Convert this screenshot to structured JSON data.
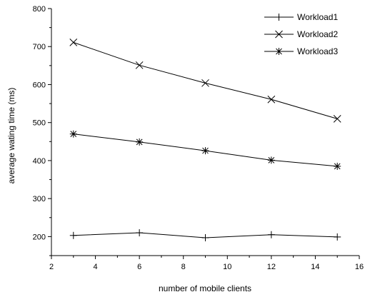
{
  "chart_data": {
    "type": "line",
    "title": "",
    "xlabel": "number of mobile clients",
    "ylabel": "average wating time (ms)",
    "xlim": [
      2,
      16
    ],
    "ylim": [
      150,
      800
    ],
    "x_ticks": [
      2,
      4,
      6,
      8,
      10,
      12,
      14,
      16
    ],
    "y_ticks": [
      200,
      300,
      400,
      500,
      600,
      700,
      800
    ],
    "grid": false,
    "legend_position": "top-right",
    "x": [
      3,
      6,
      9,
      12,
      15
    ],
    "series": [
      {
        "name": "Workload1",
        "marker": "plus",
        "values": [
          203,
          210,
          197,
          205,
          199
        ]
      },
      {
        "name": "Workload2",
        "marker": "x",
        "values": [
          711,
          651,
          604,
          561,
          510
        ]
      },
      {
        "name": "Workload3",
        "marker": "asterisk",
        "values": [
          470,
          449,
          426,
          401,
          385
        ]
      }
    ],
    "colors": {
      "line": "#000000",
      "background": "#ffffff"
    }
  }
}
